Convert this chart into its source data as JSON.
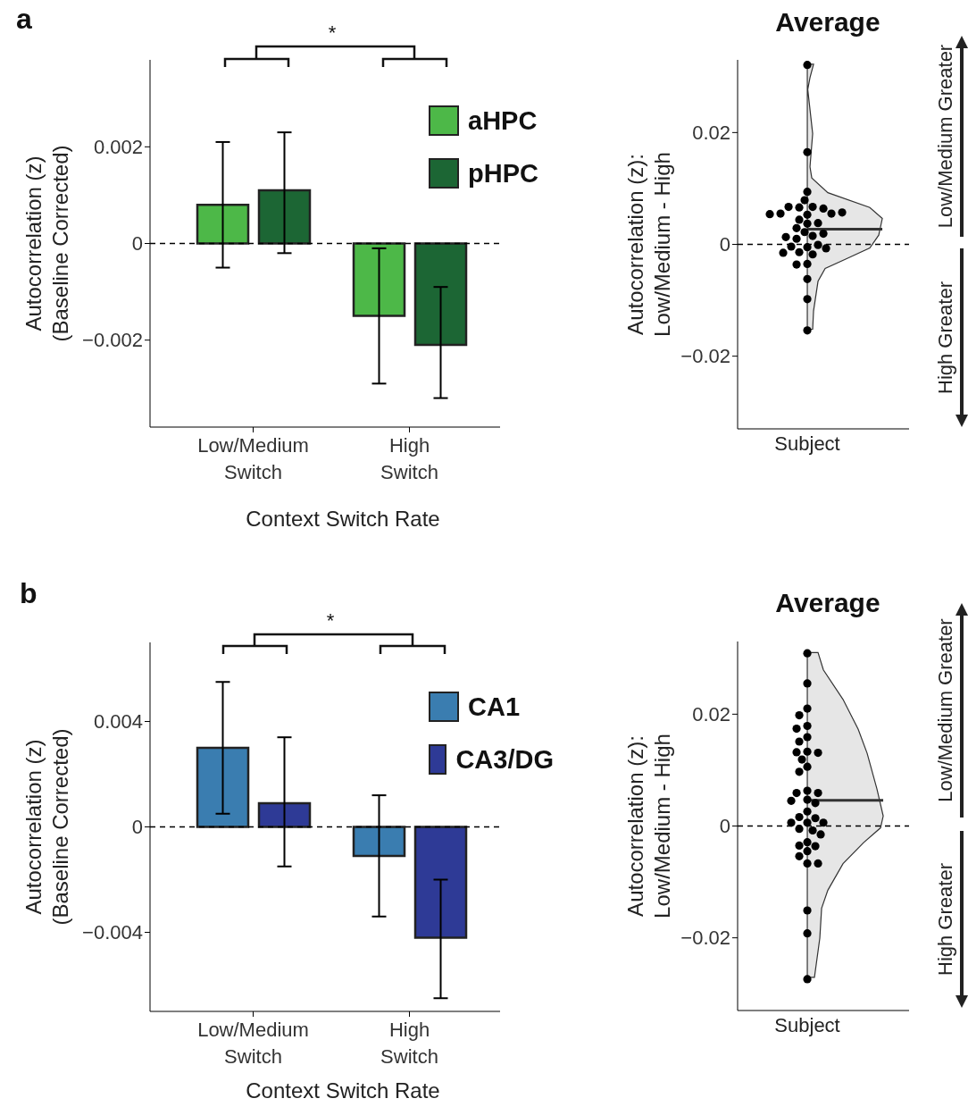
{
  "chart_data": [
    {
      "type": "bar",
      "categories": [
        "Low/Medium Switch",
        "High Switch"
      ],
      "series": [
        {
          "name": "aHPC",
          "color": "#4db848",
          "values": [
            0.0008,
            -0.0015
          ],
          "errors": [
            [
              -0.0005,
              0.0021
            ],
            [
              -0.0029,
              -0.0001
            ]
          ]
        },
        {
          "name": "pHPC",
          "color": "#1c6634",
          "values": [
            0.0011,
            -0.0021
          ],
          "errors": [
            [
              -0.0002,
              0.0023
            ],
            [
              -0.0032,
              -0.0009
            ]
          ]
        }
      ],
      "ylim": [
        -0.0038,
        0.0038
      ],
      "yticks": [
        {
          "value": -0.002,
          "label": "−0.002"
        },
        0,
        0.002
      ],
      "xlabel": "Context Switch Rate",
      "ylabel": "Autocorrelation (z)\n(Baseline Corrected)",
      "legend": "top right",
      "ref_lines": [
        {
          "axis": "y",
          "value": 0,
          "line_style": "dashed",
          "color": "#000000"
        }
      ],
      "annotations": [
        "a",
        "*"
      ]
    },
    {
      "type": "scatter",
      "title": "Average",
      "categories": [
        "Subject"
      ],
      "series": [
        {
          "color": "#000000",
          "x": [
            "Subject",
            "Subject",
            "Subject",
            "Subject",
            "Subject",
            "Subject",
            "Subject",
            "Subject",
            "Subject",
            "Subject",
            "Subject",
            "Subject",
            "Subject",
            "Subject",
            "Subject",
            "Subject",
            "Subject",
            "Subject",
            "Subject",
            "Subject",
            "Subject",
            "Subject",
            "Subject",
            "Subject",
            "Subject",
            "Subject",
            "Subject",
            "Subject",
            "Subject",
            "Subject",
            "Subject",
            "Subject",
            "Subject",
            "Subject"
          ],
          "values": [
            0.0321,
            0.0165,
            0.0094,
            0.0079,
            0.0067,
            0.0066,
            0.0064,
            0.0067,
            0.0055,
            0.0055,
            0.0053,
            0.0057,
            0.0054,
            0.0044,
            0.0037,
            0.0038,
            0.0029,
            0.0022,
            0.0015,
            0.001,
            0.0019,
            0.0013,
            -0.0005,
            -0.0001,
            -0.0004,
            -0.0007,
            -0.0014,
            -0.0015,
            -0.0018,
            -0.0035,
            -0.0036,
            -0.0062,
            -0.0098,
            -0.0154
          ]
        }
      ],
      "ylim": [
        -0.033,
        0.033
      ],
      "yticks": [
        {
          "value": -0.02,
          "label": "−0.02"
        },
        0,
        0.02
      ],
      "ylabel": "Autocorrelation (z):\nLow/Medium - High",
      "marker": "circle",
      "ref_lines": [
        {
          "axis": "y",
          "value": 0,
          "line_style": "dashed",
          "color": "#000000"
        },
        {
          "axis": "y",
          "value": 0.0027,
          "line_style": "solid",
          "color": "#333333"
        }
      ],
      "annotations": [
        "Low/Medium Greater",
        "High Greater"
      ]
    },
    {
      "type": "bar",
      "categories": [
        "Low/Medium Switch",
        "High Switch"
      ],
      "series": [
        {
          "name": "CA1",
          "color": "#3a7db0",
          "values": [
            0.003,
            -0.0011
          ],
          "errors": [
            [
              0.0005,
              0.0055
            ],
            [
              -0.0034,
              0.0012
            ]
          ]
        },
        {
          "name": "CA3/DG",
          "color": "#2e3a96",
          "values": [
            0.0009,
            -0.0042
          ],
          "errors": [
            [
              -0.0015,
              0.0034
            ],
            [
              -0.0065,
              -0.002
            ]
          ]
        }
      ],
      "ylim": [
        -0.007,
        0.007
      ],
      "yticks": [
        {
          "value": -0.004,
          "label": "−0.004"
        },
        0,
        0.004
      ],
      "xlabel": "Context Switch Rate",
      "ylabel": "Autocorrelation (z)\n(Baseline Corrected)",
      "legend": "top right",
      "ref_lines": [
        {
          "axis": "y",
          "value": 0,
          "line_style": "dashed",
          "color": "#000000"
        }
      ],
      "annotations": [
        "b",
        "*"
      ]
    },
    {
      "type": "scatter",
      "title": "Average",
      "categories": [
        "Subject"
      ],
      "series": [
        {
          "color": "#000000",
          "x": [
            "Subject",
            "Subject",
            "Subject",
            "Subject",
            "Subject",
            "Subject",
            "Subject",
            "Subject",
            "Subject",
            "Subject",
            "Subject",
            "Subject",
            "Subject",
            "Subject",
            "Subject",
            "Subject",
            "Subject",
            "Subject",
            "Subject",
            "Subject",
            "Subject",
            "Subject",
            "Subject",
            "Subject",
            "Subject",
            "Subject",
            "Subject",
            "Subject",
            "Subject",
            "Subject",
            "Subject",
            "Subject",
            "Subject",
            "Subject",
            "Subject",
            "Subject",
            "Subject",
            "Subject",
            "Subject"
          ],
          "values": [
            0.0309,
            0.0255,
            0.021,
            0.0198,
            0.0179,
            0.0174,
            0.0159,
            0.0151,
            0.0133,
            0.0132,
            0.0131,
            0.0119,
            0.0106,
            0.0097,
            0.0063,
            0.0059,
            0.0059,
            0.0047,
            0.0045,
            0.0041,
            0.0026,
            0.0016,
            0.0014,
            0.0006,
            0.0006,
            0.0006,
            -0.0005,
            -0.0008,
            -0.0015,
            -0.0029,
            -0.0035,
            -0.0036,
            -0.0045,
            -0.0054,
            -0.0067,
            -0.0067,
            -0.0151,
            -0.0192,
            -0.0274
          ]
        }
      ],
      "ylim": [
        -0.033,
        0.033
      ],
      "yticks": [
        {
          "value": -0.02,
          "label": "−0.02"
        },
        0,
        0.02
      ],
      "ylabel": "Autocorrelation (z):\nLow/Medium - High",
      "marker": "circle",
      "ref_lines": [
        {
          "axis": "y",
          "value": 0,
          "line_style": "dashed",
          "color": "#000000"
        },
        {
          "axis": "y",
          "value": 0.0046,
          "line_style": "solid",
          "color": "#333333"
        }
      ],
      "annotations": [
        "Low/Medium Greater",
        "High Greater"
      ]
    }
  ]
}
